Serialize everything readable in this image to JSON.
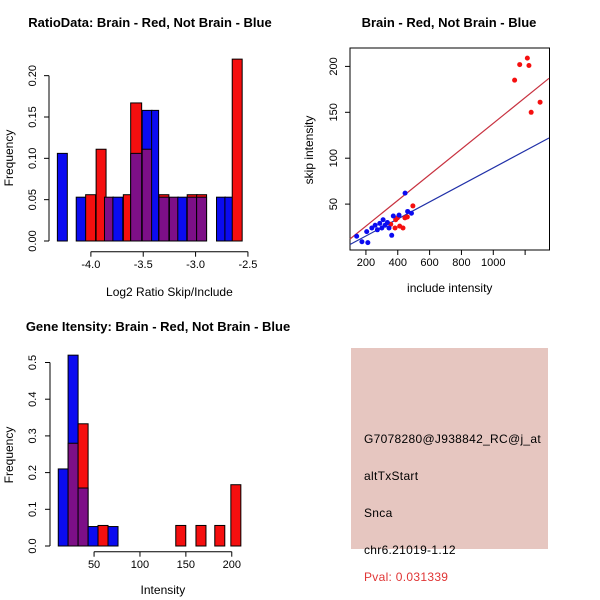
{
  "colors": {
    "red": "#f50f0f",
    "blue": "#0b0bf0",
    "purple": "#7d0f87",
    "line_red": "#c83240",
    "line_blue": "#2030a8",
    "pink_bg": "#e6c6c0",
    "pval_red": "#e03535",
    "axis_black": "#000000"
  },
  "chart_data": [
    {
      "id": "ratio_hist",
      "type": "bar",
      "title": "RatioData: Brain - Red, Not Brain - Blue",
      "xlabel": "Log2 Ratio Skip/Include",
      "ylabel": "Frequency",
      "xlim": [
        -4.4,
        -2.5
      ],
      "ylim": [
        0,
        0.225
      ],
      "legend_note": "red = Brain, blue = Not Brain, purple = overlap",
      "xticks": [
        {
          "v": -4.0,
          "l": "-4.0"
        },
        {
          "v": -3.5,
          "l": "-3.5"
        },
        {
          "v": -3.0,
          "l": "-3.0"
        },
        {
          "v": -2.5,
          "l": "-2.5"
        }
      ],
      "yticks": [
        {
          "v": 0.0,
          "l": "0.00"
        },
        {
          "v": 0.05,
          "l": "0.05"
        },
        {
          "v": 0.1,
          "l": "0.10"
        },
        {
          "v": 0.15,
          "l": "0.15"
        },
        {
          "v": 0.2,
          "l": "0.20"
        }
      ],
      "bars": [
        {
          "x": -4.32,
          "w": 0.095,
          "h": 0.106,
          "c": "blue"
        },
        {
          "x": -4.14,
          "w": 0.095,
          "h": 0.053,
          "c": "blue"
        },
        {
          "x": -4.05,
          "w": 0.095,
          "h": 0.056,
          "c": "red"
        },
        {
          "x": -3.95,
          "w": 0.095,
          "h": 0.111,
          "c": "red"
        },
        {
          "x": -3.87,
          "w": 0.086,
          "h": 0.053,
          "c": "purple"
        },
        {
          "x": -3.79,
          "w": 0.095,
          "h": 0.053,
          "c": "blue"
        },
        {
          "x": -3.69,
          "w": 0.076,
          "h": 0.056,
          "c": "red"
        },
        {
          "x": -3.62,
          "w": 0.105,
          "h": 0.167,
          "c": "red",
          "oh": 0.106,
          "oc": "purple"
        },
        {
          "x": -3.51,
          "w": 0.095,
          "h": 0.158,
          "c": "blue",
          "oh": 0.111,
          "oc": "purple"
        },
        {
          "x": -3.42,
          "w": 0.067,
          "h": 0.158,
          "c": "blue"
        },
        {
          "x": -3.35,
          "w": 0.095,
          "h": 0.056,
          "c": "red",
          "oh": 0.053,
          "oc": "purple"
        },
        {
          "x": -3.25,
          "w": 0.086,
          "h": 0.053,
          "c": "purple"
        },
        {
          "x": -3.17,
          "w": 0.086,
          "h": 0.053,
          "c": "blue"
        },
        {
          "x": -3.08,
          "w": 0.095,
          "h": 0.056,
          "c": "red",
          "oh": 0.053,
          "oc": "purple"
        },
        {
          "x": -2.99,
          "w": 0.095,
          "h": 0.056,
          "c": "red",
          "oh": 0.053,
          "oc": "purple"
        },
        {
          "x": -2.8,
          "w": 0.086,
          "h": 0.053,
          "c": "blue"
        },
        {
          "x": -2.72,
          "w": 0.086,
          "h": 0.053,
          "c": "blue"
        },
        {
          "x": -2.65,
          "w": 0.095,
          "h": 0.22,
          "c": "red"
        }
      ]
    },
    {
      "id": "scatter",
      "type": "scatter",
      "title": "Brain - Red, Not Brain - Blue",
      "xlabel": "include intensity",
      "ylabel": "skip intensity",
      "xlim": [
        100,
        1350
      ],
      "ylim": [
        0,
        220
      ],
      "xticks": [
        {
          "v": 200,
          "l": "200"
        },
        {
          "v": 400,
          "l": "400"
        },
        {
          "v": 600,
          "l": "600"
        },
        {
          "v": 800,
          "l": "800"
        },
        {
          "v": 1000,
          "l": "1000"
        },
        {
          "v": 1200,
          "l": ""
        }
      ],
      "yticks": [
        {
          "v": 50,
          "l": "50"
        },
        {
          "v": 100,
          "l": "100"
        },
        {
          "v": 150,
          "l": "150"
        },
        {
          "v": 200,
          "l": "200"
        }
      ],
      "series": [
        {
          "name": "Brain",
          "color": "red",
          "points": [
            [
              356,
              28
            ],
            [
              383,
              24
            ],
            [
              387,
              33
            ],
            [
              398,
              35
            ],
            [
              412,
              26
            ],
            [
              433,
              24
            ],
            [
              445,
              35
            ],
            [
              460,
              36
            ],
            [
              495,
              48
            ],
            [
              1134,
              185
            ],
            [
              1166,
              202
            ],
            [
              1214,
              209
            ],
            [
              1224,
              201
            ],
            [
              1238,
              150
            ],
            [
              1294,
              161
            ]
          ]
        },
        {
          "name": "Not Brain",
          "color": "blue",
          "points": [
            [
              142,
              15
            ],
            [
              175,
              9
            ],
            [
              205,
              20
            ],
            [
              212,
              8
            ],
            [
              237,
              24
            ],
            [
              258,
              27
            ],
            [
              272,
              22
            ],
            [
              287,
              29
            ],
            [
              300,
              24
            ],
            [
              308,
              33
            ],
            [
              320,
              27
            ],
            [
              335,
              30
            ],
            [
              345,
              24
            ],
            [
              362,
              16
            ],
            [
              372,
              37
            ],
            [
              408,
              38
            ],
            [
              446,
              62
            ],
            [
              462,
              42
            ],
            [
              486,
              40
            ]
          ]
        }
      ],
      "lines": [
        {
          "color": "line_red",
          "x1": 100,
          "y1": 12,
          "x2": 1350,
          "y2": 187
        },
        {
          "color": "line_blue",
          "x1": 100,
          "y1": 6,
          "x2": 1350,
          "y2": 122
        }
      ]
    },
    {
      "id": "gene_hist",
      "type": "bar",
      "title": "Gene Itensity: Brain - Red, Not Brain - Blue",
      "xlabel": "Intensity",
      "ylabel": "Frequency",
      "xlim": [
        2,
        220
      ],
      "ylim": [
        0,
        0.535
      ],
      "legend_note": "red = Brain, blue = Not Brain, purple = overlap",
      "xticks": [
        {
          "v": 50,
          "l": "50"
        },
        {
          "v": 100,
          "l": "100"
        },
        {
          "v": 150,
          "l": "150"
        },
        {
          "v": 200,
          "l": "200"
        }
      ],
      "yticks": [
        {
          "v": 0.0,
          "l": "0.0"
        },
        {
          "v": 0.1,
          "l": "0.1"
        },
        {
          "v": 0.2,
          "l": "0.2"
        },
        {
          "v": 0.3,
          "l": "0.3"
        },
        {
          "v": 0.4,
          "l": "0.4"
        },
        {
          "v": 0.5,
          "l": "0.5"
        }
      ],
      "bars": [
        {
          "x": 11.0,
          "w": 10.9,
          "h": 0.21,
          "c": "blue"
        },
        {
          "x": 21.7,
          "w": 10.9,
          "h": 0.52,
          "c": "blue",
          "oh": 0.28,
          "oc": "purple"
        },
        {
          "x": 32.6,
          "w": 10.9,
          "h": 0.333,
          "c": "red",
          "oh": 0.158,
          "oc": "purple"
        },
        {
          "x": 43.5,
          "w": 10.9,
          "h": 0.053,
          "c": "blue"
        },
        {
          "x": 54.3,
          "w": 10.9,
          "h": 0.056,
          "c": "red"
        },
        {
          "x": 65.2,
          "w": 10.9,
          "h": 0.053,
          "c": "blue"
        },
        {
          "x": 139.0,
          "w": 10.9,
          "h": 0.056,
          "c": "red"
        },
        {
          "x": 161.0,
          "w": 10.9,
          "h": 0.056,
          "c": "red"
        },
        {
          "x": 181.5,
          "w": 10.9,
          "h": 0.056,
          "c": "red"
        },
        {
          "x": 199.0,
          "w": 10.9,
          "h": 0.167,
          "c": "red"
        }
      ]
    }
  ],
  "info_panel": {
    "background": "#e6c6c0",
    "lines": [
      {
        "text": "G7078280@J938842_RC@j_at",
        "color": "#000000"
      },
      {
        "text": "altTxStart",
        "color": "#000000"
      },
      {
        "text": "Snca",
        "color": "#000000"
      },
      {
        "text": "chr6.21019-1.12",
        "color": "#000000"
      },
      {
        "text": "Pval: 0.031339",
        "color": "#e03535"
      }
    ]
  }
}
